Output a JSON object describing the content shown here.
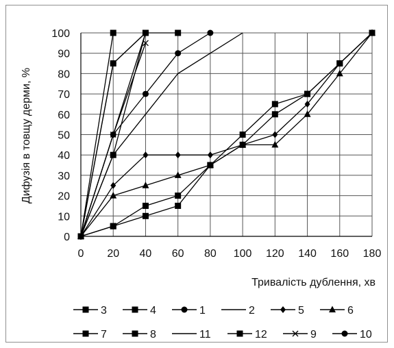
{
  "chart_data": {
    "type": "line",
    "title": "",
    "xlabel": "Тривалість дублення, хв",
    "ylabel": "Дифузія в товщу дерми, %",
    "xlim": [
      0,
      180
    ],
    "ylim": [
      0,
      100
    ],
    "x_ticks": [
      "0",
      "20",
      "40",
      "60",
      "80",
      "100",
      "120",
      "140",
      "160",
      "180"
    ],
    "y_ticks": [
      "0",
      "10",
      "20",
      "30",
      "40",
      "50",
      "60",
      "70",
      "80",
      "90",
      "100"
    ],
    "grid": "major both",
    "legend": "bottom",
    "series": [
      {
        "name": "3",
        "marker": "square",
        "x": [
          0,
          20,
          40
        ],
        "y": [
          0,
          40,
          100
        ]
      },
      {
        "name": "4",
        "marker": "square",
        "x": [
          0,
          20
        ],
        "y": [
          0,
          100
        ]
      },
      {
        "name": "1",
        "marker": "circle",
        "x": [
          0,
          20,
          40,
          60,
          80
        ],
        "y": [
          0,
          50,
          70,
          90,
          100
        ]
      },
      {
        "name": "2",
        "marker": "none",
        "x": [
          0,
          20,
          40,
          60,
          80,
          100
        ],
        "y": [
          0,
          40,
          60,
          80,
          90,
          100
        ]
      },
      {
        "name": "5",
        "marker": "diamond",
        "x": [
          0,
          20,
          40,
          60,
          80,
          100,
          120,
          140,
          160,
          180
        ],
        "y": [
          0,
          25,
          40,
          40,
          40,
          45,
          50,
          65,
          85,
          100
        ]
      },
      {
        "name": "6",
        "marker": "triangle",
        "x": [
          0,
          20,
          40,
          60,
          80,
          100,
          120,
          140,
          160,
          180
        ],
        "y": [
          0,
          20,
          25,
          30,
          35,
          45,
          45,
          60,
          80,
          100
        ]
      },
      {
        "name": "7",
        "marker": "square",
        "x": [
          0,
          20,
          40,
          60,
          80,
          100,
          120,
          140,
          160,
          180
        ],
        "y": [
          0,
          5,
          15,
          20,
          35,
          45,
          60,
          70,
          85,
          100
        ]
      },
      {
        "name": "8",
        "marker": "square",
        "x": [
          0,
          20,
          40,
          60,
          80,
          100,
          120,
          140,
          160,
          180
        ],
        "y": [
          0,
          5,
          10,
          15,
          35,
          50,
          65,
          70,
          85,
          100
        ]
      },
      {
        "name": "11",
        "marker": "none",
        "x": [
          0,
          40
        ],
        "y": [
          0,
          100
        ]
      },
      {
        "name": "12",
        "marker": "square",
        "x": [
          0,
          20,
          40,
          60
        ],
        "y": [
          0,
          85,
          100,
          100
        ]
      },
      {
        "name": "9",
        "marker": "x",
        "x": [
          0,
          20,
          40
        ],
        "y": [
          0,
          50,
          95
        ]
      },
      {
        "name": "10",
        "marker": "circle",
        "x": [
          0,
          20,
          40
        ],
        "y": [
          0,
          85,
          100
        ]
      }
    ]
  },
  "colors": {
    "line": "#000000",
    "grid": "#555555",
    "frame": "#8f8f8f"
  }
}
